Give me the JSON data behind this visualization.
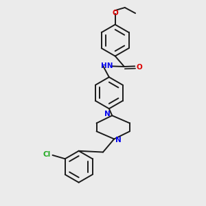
{
  "background_color": "#ebebeb",
  "bond_color": "#1a1a1a",
  "N_color": "#0000ee",
  "O_color": "#dd0000",
  "Cl_color": "#22aa22",
  "figsize": [
    3.0,
    3.0
  ],
  "dpi": 100,
  "xlim": [
    0,
    10
  ],
  "ylim": [
    0,
    10
  ],
  "ring_r": 0.78,
  "lw": 1.4,
  "fs": 7.5
}
